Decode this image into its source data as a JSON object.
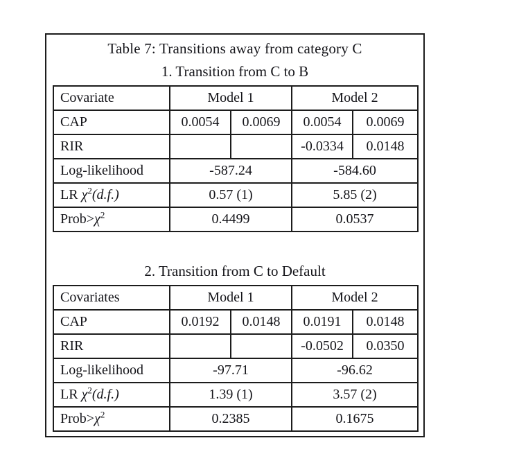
{
  "table_caption": "Table 7: Transitions away from category C",
  "panels": [
    {
      "subtitle": "1. Transition from C to B",
      "header": {
        "covariate": "Covariate",
        "model1": "Model 1",
        "model2": "Model 2"
      },
      "coef_rows": [
        {
          "label": "CAP",
          "values": [
            "0.0054",
            "0.0069",
            "0.0054",
            "0.0069"
          ]
        },
        {
          "label": "RIR",
          "values": [
            "",
            "",
            "-0.0334",
            "0.0148"
          ]
        }
      ],
      "stat_rows": [
        {
          "label": "Log-likelihood",
          "model1": "-587.24",
          "model2": "-584.60"
        },
        {
          "label_pre": "LR ",
          "label_chi": "χ",
          "label_sup": "2",
          "label_post": "(d.f.)",
          "model1": "0.57 (1)",
          "model2": "5.85 (2)"
        },
        {
          "label_pre": "Prob>",
          "label_chi": "χ",
          "label_sup": "2",
          "label_post": "",
          "model1": "0.4499",
          "model2": "0.0537"
        }
      ]
    },
    {
      "subtitle": "2. Transition from C to Default",
      "header": {
        "covariate": "Covariates",
        "model1": "Model 1",
        "model2": "Model 2"
      },
      "coef_rows": [
        {
          "label": "CAP",
          "values": [
            "0.0192",
            "0.0148",
            "0.0191",
            "0.0148"
          ]
        },
        {
          "label": "RIR",
          "values": [
            "",
            "",
            "-0.0502",
            "0.0350"
          ]
        }
      ],
      "stat_rows": [
        {
          "label": "Log-likelihood",
          "model1": "-97.71",
          "model2": "-96.62"
        },
        {
          "label_pre": "LR ",
          "label_chi": "χ",
          "label_sup": "2",
          "label_post": "(d.f.)",
          "model1": "1.39 (1)",
          "model2": "3.57 (2)"
        },
        {
          "label_pre": "Prob>",
          "label_chi": "χ",
          "label_sup": "2",
          "label_post": "",
          "model1": "0.2385",
          "model2": "0.1675"
        }
      ]
    }
  ]
}
